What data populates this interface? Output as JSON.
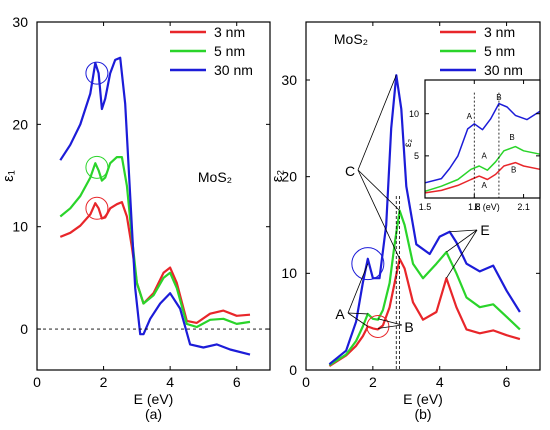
{
  "chart_data": [
    {
      "panel_label": "(a)",
      "type": "line",
      "xlabel": "E (eV)",
      "ylabel": "ε₁",
      "xlim": [
        0,
        7
      ],
      "ylim": [
        -4,
        30
      ],
      "x_ticks": [
        0,
        2,
        4,
        6
      ],
      "y_ticks": [
        0,
        10,
        20,
        30
      ],
      "zero_line": "dashed",
      "annotation": "MoS₂",
      "legend": "top-right",
      "series": [
        {
          "name": "3 nm",
          "color": "#e8262a",
          "x": [
            0.7,
            1.0,
            1.3,
            1.6,
            1.75,
            1.85,
            1.95,
            2.05,
            2.2,
            2.4,
            2.55,
            2.7,
            2.85,
            3.0,
            3.2,
            3.5,
            3.8,
            4.0,
            4.2,
            4.5,
            4.8,
            5.2,
            5.6,
            6.0,
            6.4
          ],
          "y": [
            9,
            9.4,
            10.1,
            11.2,
            12.3,
            11.8,
            10.8,
            10.9,
            11.8,
            12.2,
            12.4,
            11,
            8,
            4.5,
            2.5,
            3.5,
            5.5,
            6,
            4.5,
            0.8,
            0.6,
            1.5,
            1.8,
            1.3,
            1.4
          ]
        },
        {
          "name": "5 nm",
          "color": "#2ad42a",
          "x": [
            0.7,
            1.0,
            1.3,
            1.6,
            1.75,
            1.85,
            1.95,
            2.05,
            2.2,
            2.4,
            2.55,
            2.7,
            2.85,
            3.0,
            3.2,
            3.5,
            3.8,
            4.0,
            4.2,
            4.5,
            4.8,
            5.2,
            5.6,
            6.0,
            6.4
          ],
          "y": [
            11,
            11.8,
            13,
            14.8,
            16.2,
            15.5,
            14.5,
            14.8,
            16.2,
            16.8,
            16.8,
            14,
            9,
            4.5,
            2.5,
            3.3,
            5,
            5.5,
            4,
            0.5,
            0.2,
            0.9,
            1,
            0.5,
            0.7
          ]
        },
        {
          "name": "30 nm",
          "color": "#1c1cd8",
          "x": [
            0.7,
            1.0,
            1.3,
            1.6,
            1.75,
            1.85,
            1.95,
            2.05,
            2.2,
            2.35,
            2.5,
            2.65,
            2.8,
            2.95,
            3.1,
            3.2,
            3.4,
            3.7,
            4.0,
            4.3,
            4.6,
            5.0,
            5.4,
            5.8,
            6.4
          ],
          "y": [
            16.5,
            18,
            20,
            23,
            26,
            25,
            21.5,
            22.5,
            25,
            26.3,
            26.5,
            22,
            13,
            4,
            -0.5,
            -0.5,
            1,
            2.5,
            3.5,
            2,
            -1.5,
            -1.8,
            -1.5,
            -2,
            -2.5
          ]
        }
      ]
    },
    {
      "panel_label": "(b)",
      "type": "line",
      "xlabel": "E (eV)",
      "ylabel": "ε₂",
      "xlim": [
        0,
        7
      ],
      "ylim": [
        0,
        36
      ],
      "x_ticks": [
        0,
        2,
        4,
        6
      ],
      "y_ticks": [
        0,
        10,
        20,
        30
      ],
      "annotation": "MoS₂",
      "legend": "top-right",
      "peak_labels": [
        "A",
        "B",
        "C",
        "E"
      ],
      "series": [
        {
          "name": "3 nm",
          "color": "#e8262a",
          "x": [
            0.7,
            1.2,
            1.5,
            1.7,
            1.85,
            2.0,
            2.15,
            2.3,
            2.5,
            2.65,
            2.8,
            2.95,
            3.2,
            3.5,
            3.9,
            4.2,
            4.5,
            4.8,
            5.2,
            5.6,
            6.0,
            6.4
          ],
          "y": [
            0.4,
            1.5,
            2.5,
            3.5,
            4.5,
            4.3,
            4.2,
            4.6,
            6.5,
            9,
            11.5,
            10.5,
            7,
            5.2,
            6,
            9.5,
            6.5,
            4.2,
            3.8,
            4.1,
            3.6,
            3.2
          ]
        },
        {
          "name": "5 nm",
          "color": "#2ad42a",
          "x": [
            0.7,
            1.2,
            1.5,
            1.7,
            1.85,
            2.0,
            2.15,
            2.3,
            2.5,
            2.65,
            2.8,
            2.95,
            3.2,
            3.5,
            3.9,
            4.2,
            4.5,
            4.8,
            5.2,
            5.6,
            6.0,
            6.4
          ],
          "y": [
            0.5,
            1.6,
            3,
            4.5,
            5.8,
            5.3,
            5.2,
            6.2,
            9,
            13,
            16.5,
            15,
            11,
            9.5,
            11,
            12.2,
            10,
            7.5,
            6.5,
            6.8,
            5.5,
            4.2
          ]
        },
        {
          "name": "30 nm",
          "color": "#1c1cd8",
          "x": [
            0.7,
            1.2,
            1.5,
            1.7,
            1.85,
            2.0,
            2.2,
            2.4,
            2.55,
            2.7,
            2.85,
            3.0,
            3.3,
            3.7,
            4.0,
            4.3,
            4.5,
            4.8,
            5.2,
            5.6,
            6.0,
            6.4
          ],
          "y": [
            0.6,
            2,
            5,
            9,
            11.5,
            9.5,
            9.5,
            15,
            25,
            30.5,
            27,
            19,
            13,
            12,
            13.8,
            14.3,
            13.2,
            11,
            10.2,
            10.8,
            8.2,
            6
          ]
        }
      ]
    },
    {
      "panel_label": "inset",
      "type": "line",
      "xlabel": "E (eV)",
      "ylabel": "ε₂",
      "xlim": [
        1.5,
        2.2
      ],
      "ylim": [
        0,
        14
      ],
      "x_ticks": [
        1.5,
        1.8,
        2.1
      ],
      "x_tick_labels": [
        "1.5",
        "1.8",
        "2.1"
      ],
      "y_ticks": [
        5,
        10
      ],
      "marker_lines_x": [
        1.8,
        1.95
      ],
      "peak_labels": [
        "A",
        "A",
        "A",
        "B",
        "B",
        "B"
      ],
      "series": [
        {
          "name": "3 nm",
          "color": "#e8262a",
          "x": [
            1.5,
            1.6,
            1.7,
            1.78,
            1.83,
            1.88,
            1.93,
            1.98,
            2.05,
            2.1,
            2.2
          ],
          "y": [
            0.6,
            0.9,
            1.5,
            2.2,
            2.6,
            2.2,
            2.8,
            3.8,
            4.2,
            3.8,
            3.4
          ]
        },
        {
          "name": "5 nm",
          "color": "#2ad42a",
          "x": [
            1.5,
            1.6,
            1.7,
            1.78,
            1.83,
            1.88,
            1.93,
            1.98,
            2.05,
            2.1,
            2.2
          ],
          "y": [
            0.8,
            1.4,
            2.2,
            3.4,
            3.8,
            3.3,
            4.3,
            5.6,
            6.1,
            5.6,
            5.2
          ]
        },
        {
          "name": "30 nm",
          "color": "#1c1cd8",
          "x": [
            1.5,
            1.6,
            1.65,
            1.7,
            1.76,
            1.8,
            1.85,
            1.9,
            1.95,
            2.0,
            2.05,
            2.12,
            2.2
          ],
          "y": [
            1.8,
            2.3,
            3.5,
            5,
            8.2,
            8.8,
            8.1,
            9.4,
            11.2,
            10.8,
            9.8,
            9.3,
            10.3
          ]
        }
      ]
    }
  ]
}
